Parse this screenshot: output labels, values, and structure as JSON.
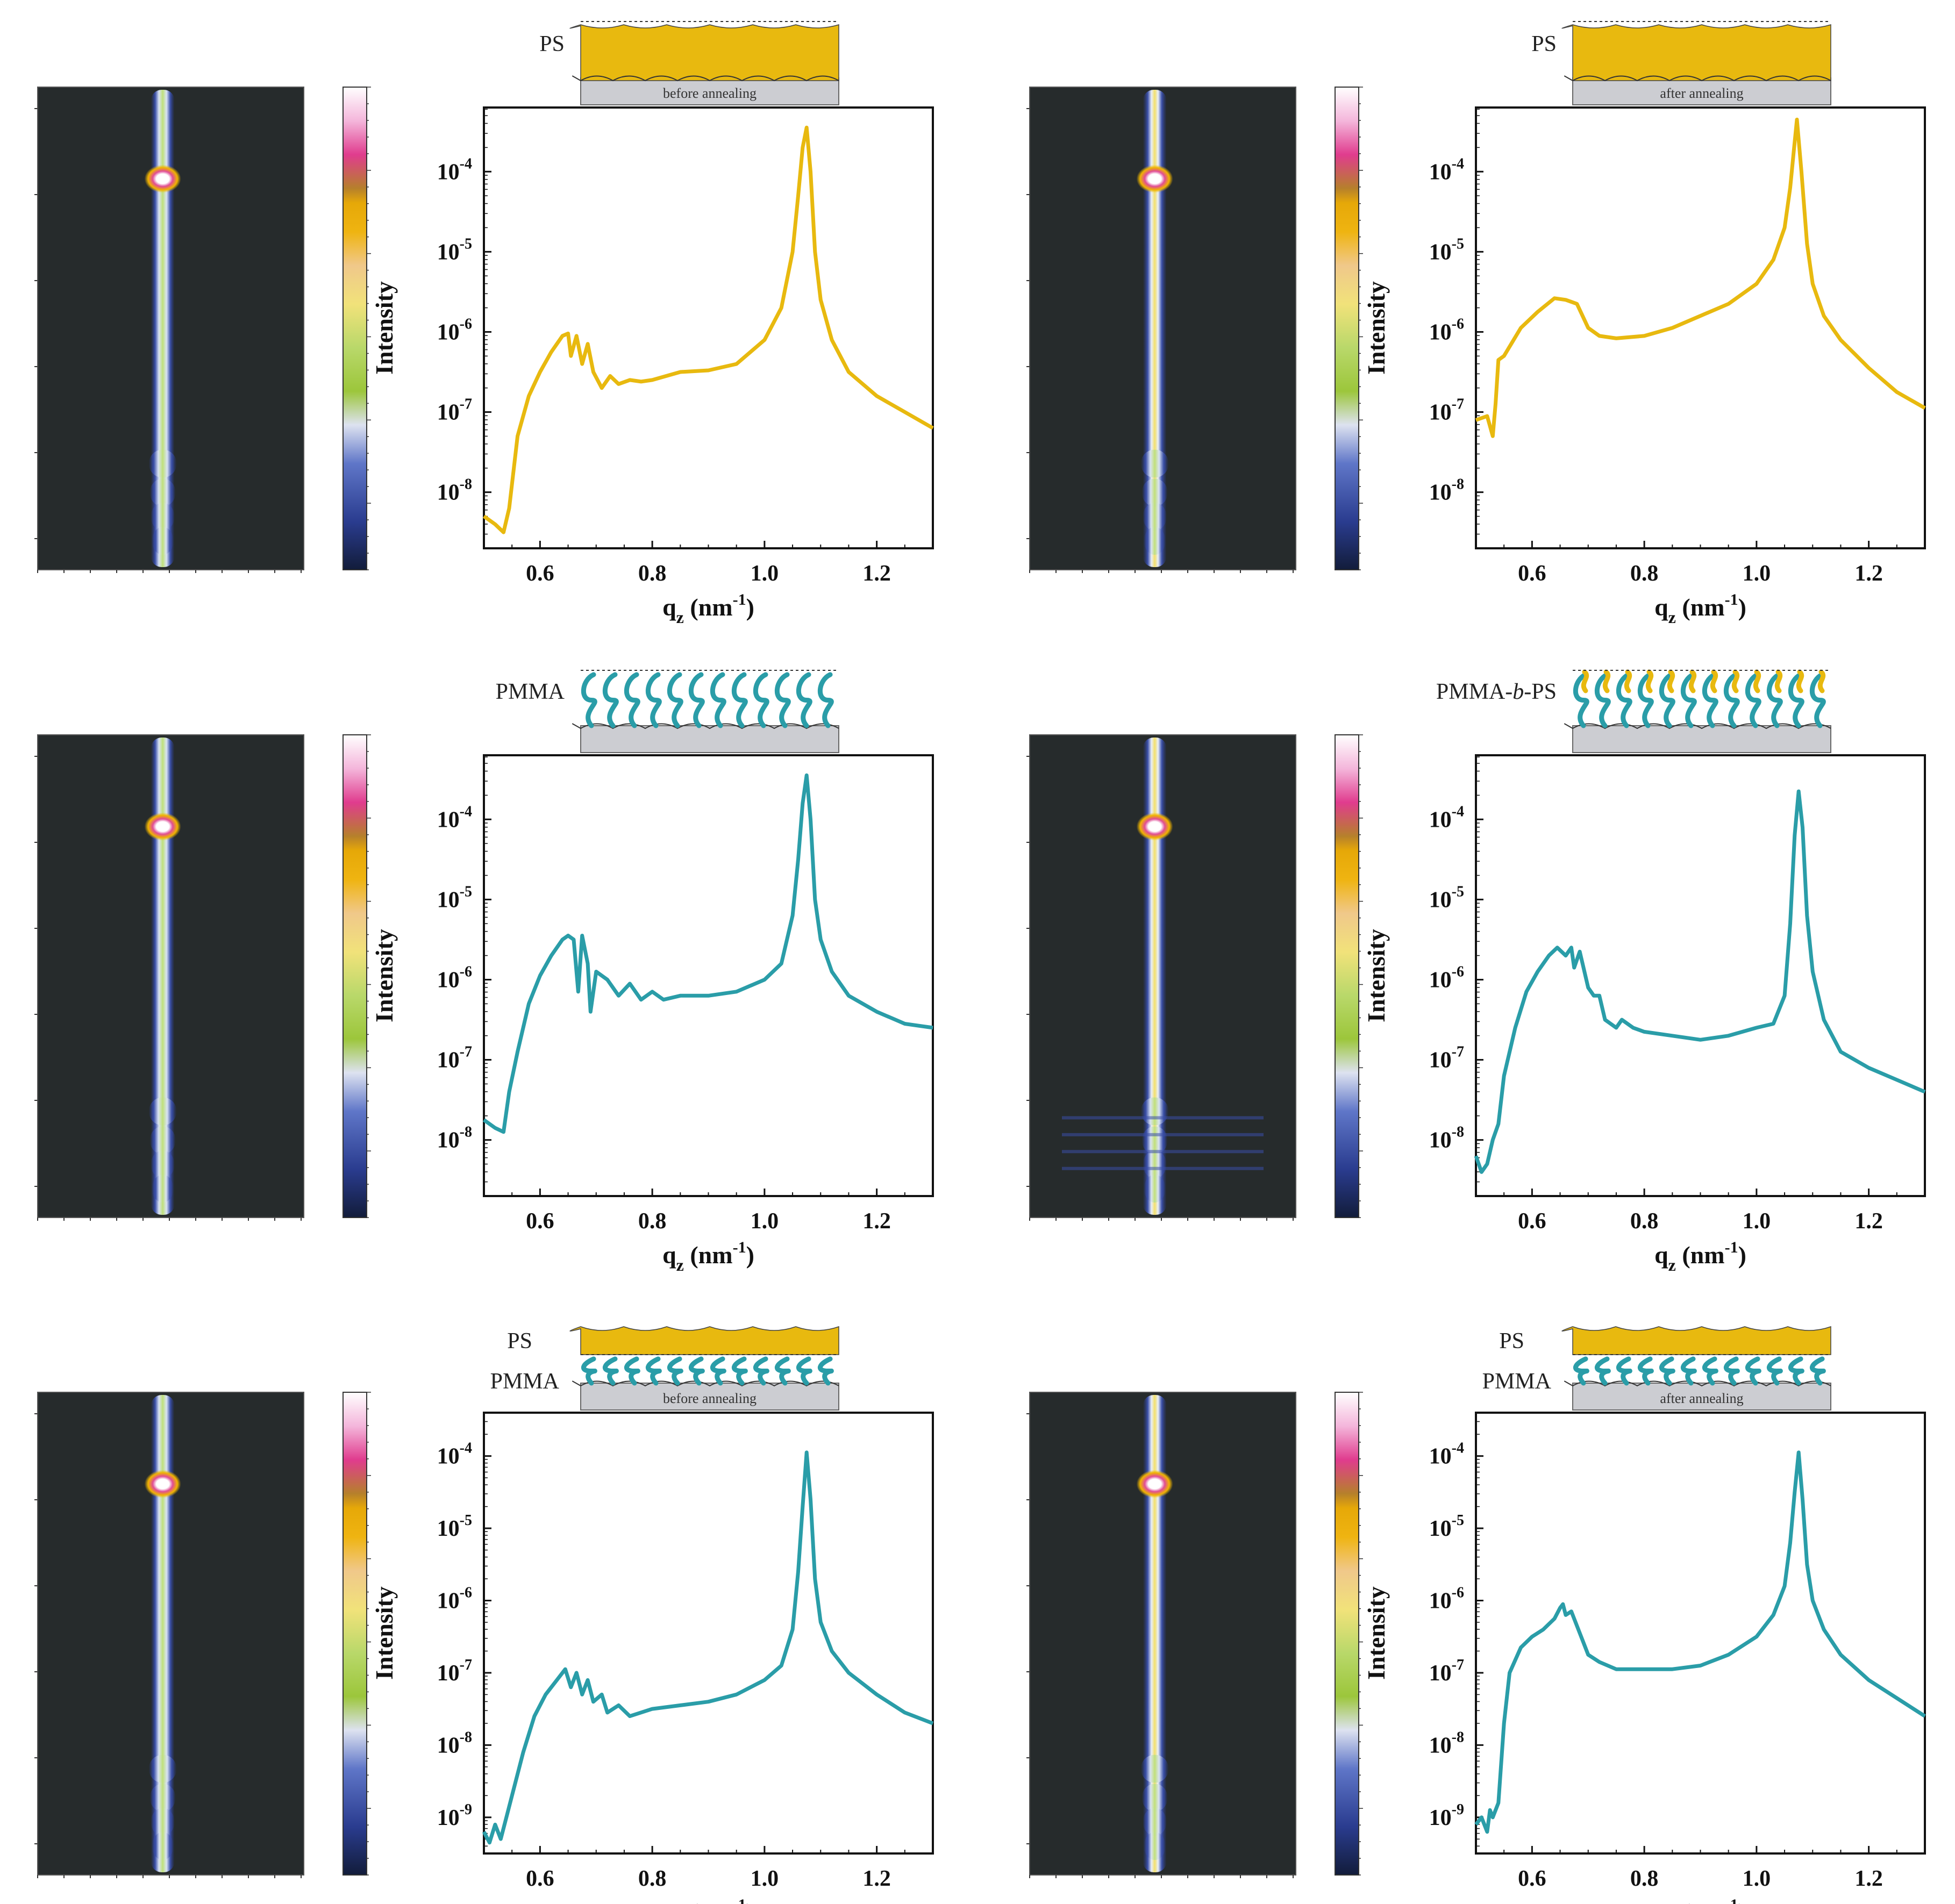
{
  "figure": {
    "x_ticks": [
      "0.6",
      "0.8",
      "1.0",
      "1.2"
    ],
    "xlabel": {
      "base": "q",
      "sub": "z",
      "unit": " (nm",
      "exp": "-1",
      "close": ")"
    },
    "ylabel": "Intensity",
    "colors": {
      "ps": "#E8B90F",
      "pmma": "#2A9DA8",
      "detector_bg": "#262B2C",
      "substrate": "#CCCDD2"
    }
  },
  "panels": [
    {
      "id": "ps-before",
      "schematic": {
        "labels": [
          "PS"
        ],
        "caption": "before annealing",
        "layers": [
          "ps"
        ]
      },
      "chart_data": {
        "type": "line",
        "xlabel": "qz (nm-1)",
        "ylabel": "Intensity",
        "yscale": "log",
        "xlim": [
          0.5,
          1.3
        ],
        "ylim_exp": [
          -8.7,
          -3.2
        ],
        "y_ticks": [
          {
            "base": "10",
            "exp": "-4"
          },
          {
            "base": "10",
            "exp": "-5"
          },
          {
            "base": "10",
            "exp": "-6"
          },
          {
            "base": "10",
            "exp": "-7"
          },
          {
            "base": "10",
            "exp": "-8"
          }
        ],
        "series": [
          {
            "name": "PS before annealing",
            "color": "#E8B90F",
            "x": [
              0.5,
              0.52,
              0.535,
              0.545,
              0.56,
              0.58,
              0.6,
              0.62,
              0.64,
              0.65,
              0.655,
              0.665,
              0.675,
              0.685,
              0.695,
              0.71,
              0.725,
              0.74,
              0.76,
              0.78,
              0.8,
              0.85,
              0.9,
              0.95,
              1.0,
              1.03,
              1.05,
              1.06,
              1.068,
              1.075,
              1.082,
              1.09,
              1.1,
              1.12,
              1.15,
              1.2,
              1.25,
              1.3
            ],
            "logy": [
              -8.3,
              -8.4,
              -8.5,
              -8.2,
              -7.3,
              -6.8,
              -6.5,
              -6.25,
              -6.05,
              -6.02,
              -6.3,
              -6.05,
              -6.4,
              -6.15,
              -6.5,
              -6.7,
              -6.55,
              -6.65,
              -6.6,
              -6.62,
              -6.6,
              -6.5,
              -6.48,
              -6.4,
              -6.1,
              -5.7,
              -5.0,
              -4.3,
              -3.7,
              -3.45,
              -4.0,
              -5.0,
              -5.6,
              -6.1,
              -6.5,
              -6.8,
              -7.0,
              -7.2
            ]
          }
        ]
      }
    },
    {
      "id": "ps-after",
      "schematic": {
        "labels": [
          "PS"
        ],
        "caption": "after annealing",
        "layers": [
          "ps"
        ]
      },
      "chart_data": {
        "type": "line",
        "xlabel": "qz (nm-1)",
        "ylabel": "Intensity",
        "yscale": "log",
        "xlim": [
          0.5,
          1.3
        ],
        "ylim_exp": [
          -8.7,
          -3.2
        ],
        "y_ticks": [
          {
            "base": "10",
            "exp": "-4"
          },
          {
            "base": "10",
            "exp": "-5"
          },
          {
            "base": "10",
            "exp": "-6"
          },
          {
            "base": "10",
            "exp": "-7"
          },
          {
            "base": "10",
            "exp": "-8"
          }
        ],
        "series": [
          {
            "name": "PS after annealing",
            "color": "#E8B90F",
            "x": [
              0.5,
              0.52,
              0.53,
              0.535,
              0.54,
              0.55,
              0.58,
              0.61,
              0.64,
              0.66,
              0.68,
              0.7,
              0.72,
              0.75,
              0.8,
              0.85,
              0.9,
              0.95,
              1.0,
              1.03,
              1.05,
              1.06,
              1.067,
              1.072,
              1.08,
              1.09,
              1.1,
              1.12,
              1.15,
              1.2,
              1.25,
              1.3
            ],
            "logy": [
              -7.1,
              -7.05,
              -7.3,
              -6.9,
              -6.35,
              -6.3,
              -5.95,
              -5.75,
              -5.58,
              -5.6,
              -5.65,
              -5.95,
              -6.05,
              -6.08,
              -6.05,
              -5.95,
              -5.8,
              -5.65,
              -5.4,
              -5.1,
              -4.7,
              -4.2,
              -3.7,
              -3.35,
              -4.0,
              -4.9,
              -5.4,
              -5.8,
              -6.1,
              -6.45,
              -6.75,
              -6.95
            ]
          }
        ]
      }
    },
    {
      "id": "pmma",
      "schematic": {
        "labels": [
          "PMMA"
        ],
        "caption": "",
        "layers": [
          "pmma"
        ]
      },
      "chart_data": {
        "type": "line",
        "xlabel": "qz (nm-1)",
        "ylabel": "Intensity",
        "yscale": "log",
        "xlim": [
          0.5,
          1.3
        ],
        "ylim_exp": [
          -8.7,
          -3.2
        ],
        "y_ticks": [
          {
            "base": "10",
            "exp": "-4"
          },
          {
            "base": "10",
            "exp": "-5"
          },
          {
            "base": "10",
            "exp": "-6"
          },
          {
            "base": "10",
            "exp": "-7"
          },
          {
            "base": "10",
            "exp": "-8"
          }
        ],
        "series": [
          {
            "name": "PMMA",
            "color": "#2A9DA8",
            "x": [
              0.5,
              0.52,
              0.535,
              0.545,
              0.56,
              0.58,
              0.6,
              0.62,
              0.64,
              0.65,
              0.66,
              0.668,
              0.675,
              0.685,
              0.69,
              0.7,
              0.72,
              0.74,
              0.76,
              0.78,
              0.8,
              0.82,
              0.85,
              0.9,
              0.95,
              1.0,
              1.03,
              1.05,
              1.06,
              1.068,
              1.075,
              1.082,
              1.09,
              1.1,
              1.12,
              1.15,
              1.2,
              1.25,
              1.3
            ],
            "logy": [
              -7.75,
              -7.85,
              -7.9,
              -7.4,
              -6.9,
              -6.3,
              -5.95,
              -5.7,
              -5.5,
              -5.45,
              -5.5,
              -6.15,
              -5.45,
              -5.8,
              -6.4,
              -5.9,
              -6.0,
              -6.2,
              -6.05,
              -6.25,
              -6.15,
              -6.25,
              -6.2,
              -6.2,
              -6.15,
              -6.0,
              -5.8,
              -5.2,
              -4.5,
              -3.8,
              -3.45,
              -4.0,
              -5.0,
              -5.5,
              -5.9,
              -6.2,
              -6.4,
              -6.55,
              -6.6
            ]
          }
        ]
      }
    },
    {
      "id": "pmma-b-ps",
      "schematic": {
        "labels": [
          "PMMA-b-PS"
        ],
        "caption": "",
        "layers": [
          "pmma",
          "ps-tips"
        ]
      },
      "chart_data": {
        "type": "line",
        "xlabel": "qz (nm-1)",
        "ylabel": "Intensity",
        "yscale": "log",
        "xlim": [
          0.5,
          1.3
        ],
        "ylim_exp": [
          -8.7,
          -3.2
        ],
        "y_ticks": [
          {
            "base": "10",
            "exp": "-4"
          },
          {
            "base": "10",
            "exp": "-5"
          },
          {
            "base": "10",
            "exp": "-6"
          },
          {
            "base": "10",
            "exp": "-7"
          },
          {
            "base": "10",
            "exp": "-8"
          }
        ],
        "series": [
          {
            "name": "PMMA-b-PS",
            "color": "#2A9DA8",
            "x": [
              0.5,
              0.51,
              0.52,
              0.53,
              0.54,
              0.55,
              0.57,
              0.59,
              0.61,
              0.63,
              0.645,
              0.66,
              0.67,
              0.675,
              0.685,
              0.7,
              0.71,
              0.72,
              0.73,
              0.75,
              0.76,
              0.78,
              0.8,
              0.85,
              0.9,
              0.95,
              1.0,
              1.03,
              1.05,
              1.06,
              1.068,
              1.075,
              1.082,
              1.09,
              1.1,
              1.12,
              1.15,
              1.2,
              1.25,
              1.3
            ],
            "logy": [
              -8.2,
              -8.4,
              -8.3,
              -8.0,
              -7.8,
              -7.2,
              -6.6,
              -6.15,
              -5.9,
              -5.7,
              -5.6,
              -5.7,
              -5.6,
              -5.85,
              -5.65,
              -6.1,
              -6.2,
              -6.2,
              -6.5,
              -6.6,
              -6.5,
              -6.6,
              -6.65,
              -6.7,
              -6.75,
              -6.7,
              -6.6,
              -6.55,
              -6.2,
              -5.3,
              -4.2,
              -3.65,
              -4.1,
              -5.2,
              -5.9,
              -6.5,
              -6.9,
              -7.1,
              -7.25,
              -7.4
            ]
          }
        ]
      }
    },
    {
      "id": "ps-pmma-before",
      "schematic": {
        "labels": [
          "PS",
          "PMMA"
        ],
        "caption": "before annealing",
        "layers": [
          "pmma",
          "ps-top"
        ]
      },
      "chart_data": {
        "type": "line",
        "xlabel": "qz (nm-1)",
        "ylabel": "Intensity",
        "yscale": "log",
        "xlim": [
          0.5,
          1.3
        ],
        "ylim_exp": [
          -9.5,
          -3.4
        ],
        "y_ticks": [
          {
            "base": "10",
            "exp": "-4"
          },
          {
            "base": "10",
            "exp": "-5"
          },
          {
            "base": "10",
            "exp": "-6"
          },
          {
            "base": "10",
            "exp": "-7"
          },
          {
            "base": "10",
            "exp": "-8"
          },
          {
            "base": "10",
            "exp": "-9"
          }
        ],
        "series": [
          {
            "name": "PS/PMMA before annealing",
            "color": "#2A9DA8",
            "x": [
              0.5,
              0.51,
              0.52,
              0.53,
              0.54,
              0.55,
              0.57,
              0.59,
              0.61,
              0.63,
              0.645,
              0.655,
              0.665,
              0.675,
              0.685,
              0.695,
              0.71,
              0.72,
              0.74,
              0.76,
              0.8,
              0.85,
              0.9,
              0.95,
              1.0,
              1.03,
              1.05,
              1.06,
              1.068,
              1.075,
              1.082,
              1.09,
              1.1,
              1.12,
              1.15,
              1.2,
              1.25,
              1.3
            ],
            "logy": [
              -9.2,
              -9.35,
              -9.1,
              -9.3,
              -9.0,
              -8.7,
              -8.1,
              -7.6,
              -7.3,
              -7.1,
              -6.95,
              -7.2,
              -7.0,
              -7.3,
              -7.1,
              -7.4,
              -7.3,
              -7.55,
              -7.45,
              -7.6,
              -7.5,
              -7.45,
              -7.4,
              -7.3,
              -7.1,
              -6.9,
              -6.4,
              -5.6,
              -4.7,
              -3.95,
              -4.6,
              -5.7,
              -6.3,
              -6.7,
              -7.0,
              -7.3,
              -7.55,
              -7.7
            ]
          }
        ]
      }
    },
    {
      "id": "ps-pmma-after",
      "schematic": {
        "labels": [
          "PS",
          "PMMA"
        ],
        "caption": "after annealing",
        "layers": [
          "pmma",
          "ps-top"
        ]
      },
      "chart_data": {
        "type": "line",
        "xlabel": "qz (nm-1)",
        "ylabel": "Intensity",
        "yscale": "log",
        "xlim": [
          0.5,
          1.3
        ],
        "ylim_exp": [
          -9.5,
          -3.4
        ],
        "y_ticks": [
          {
            "base": "10",
            "exp": "-4"
          },
          {
            "base": "10",
            "exp": "-5"
          },
          {
            "base": "10",
            "exp": "-6"
          },
          {
            "base": "10",
            "exp": "-7"
          },
          {
            "base": "10",
            "exp": "-8"
          },
          {
            "base": "10",
            "exp": "-9"
          }
        ],
        "series": [
          {
            "name": "PS/PMMA after annealing",
            "color": "#2A9DA8",
            "x": [
              0.5,
              0.51,
              0.52,
              0.525,
              0.53,
              0.54,
              0.55,
              0.56,
              0.58,
              0.6,
              0.62,
              0.64,
              0.65,
              0.655,
              0.66,
              0.67,
              0.68,
              0.7,
              0.72,
              0.75,
              0.8,
              0.85,
              0.9,
              0.95,
              1.0,
              1.03,
              1.05,
              1.06,
              1.068,
              1.075,
              1.082,
              1.09,
              1.1,
              1.12,
              1.15,
              1.2,
              1.25,
              1.3
            ],
            "logy": [
              -9.1,
              -9.0,
              -9.2,
              -8.9,
              -9.0,
              -8.8,
              -7.7,
              -7.0,
              -6.65,
              -6.5,
              -6.4,
              -6.25,
              -6.1,
              -6.05,
              -6.2,
              -6.15,
              -6.35,
              -6.75,
              -6.85,
              -6.95,
              -6.95,
              -6.95,
              -6.9,
              -6.75,
              -6.5,
              -6.2,
              -5.8,
              -5.2,
              -4.5,
              -3.95,
              -4.6,
              -5.5,
              -6.0,
              -6.4,
              -6.75,
              -7.1,
              -7.35,
              -7.6
            ]
          }
        ]
      }
    }
  ]
}
